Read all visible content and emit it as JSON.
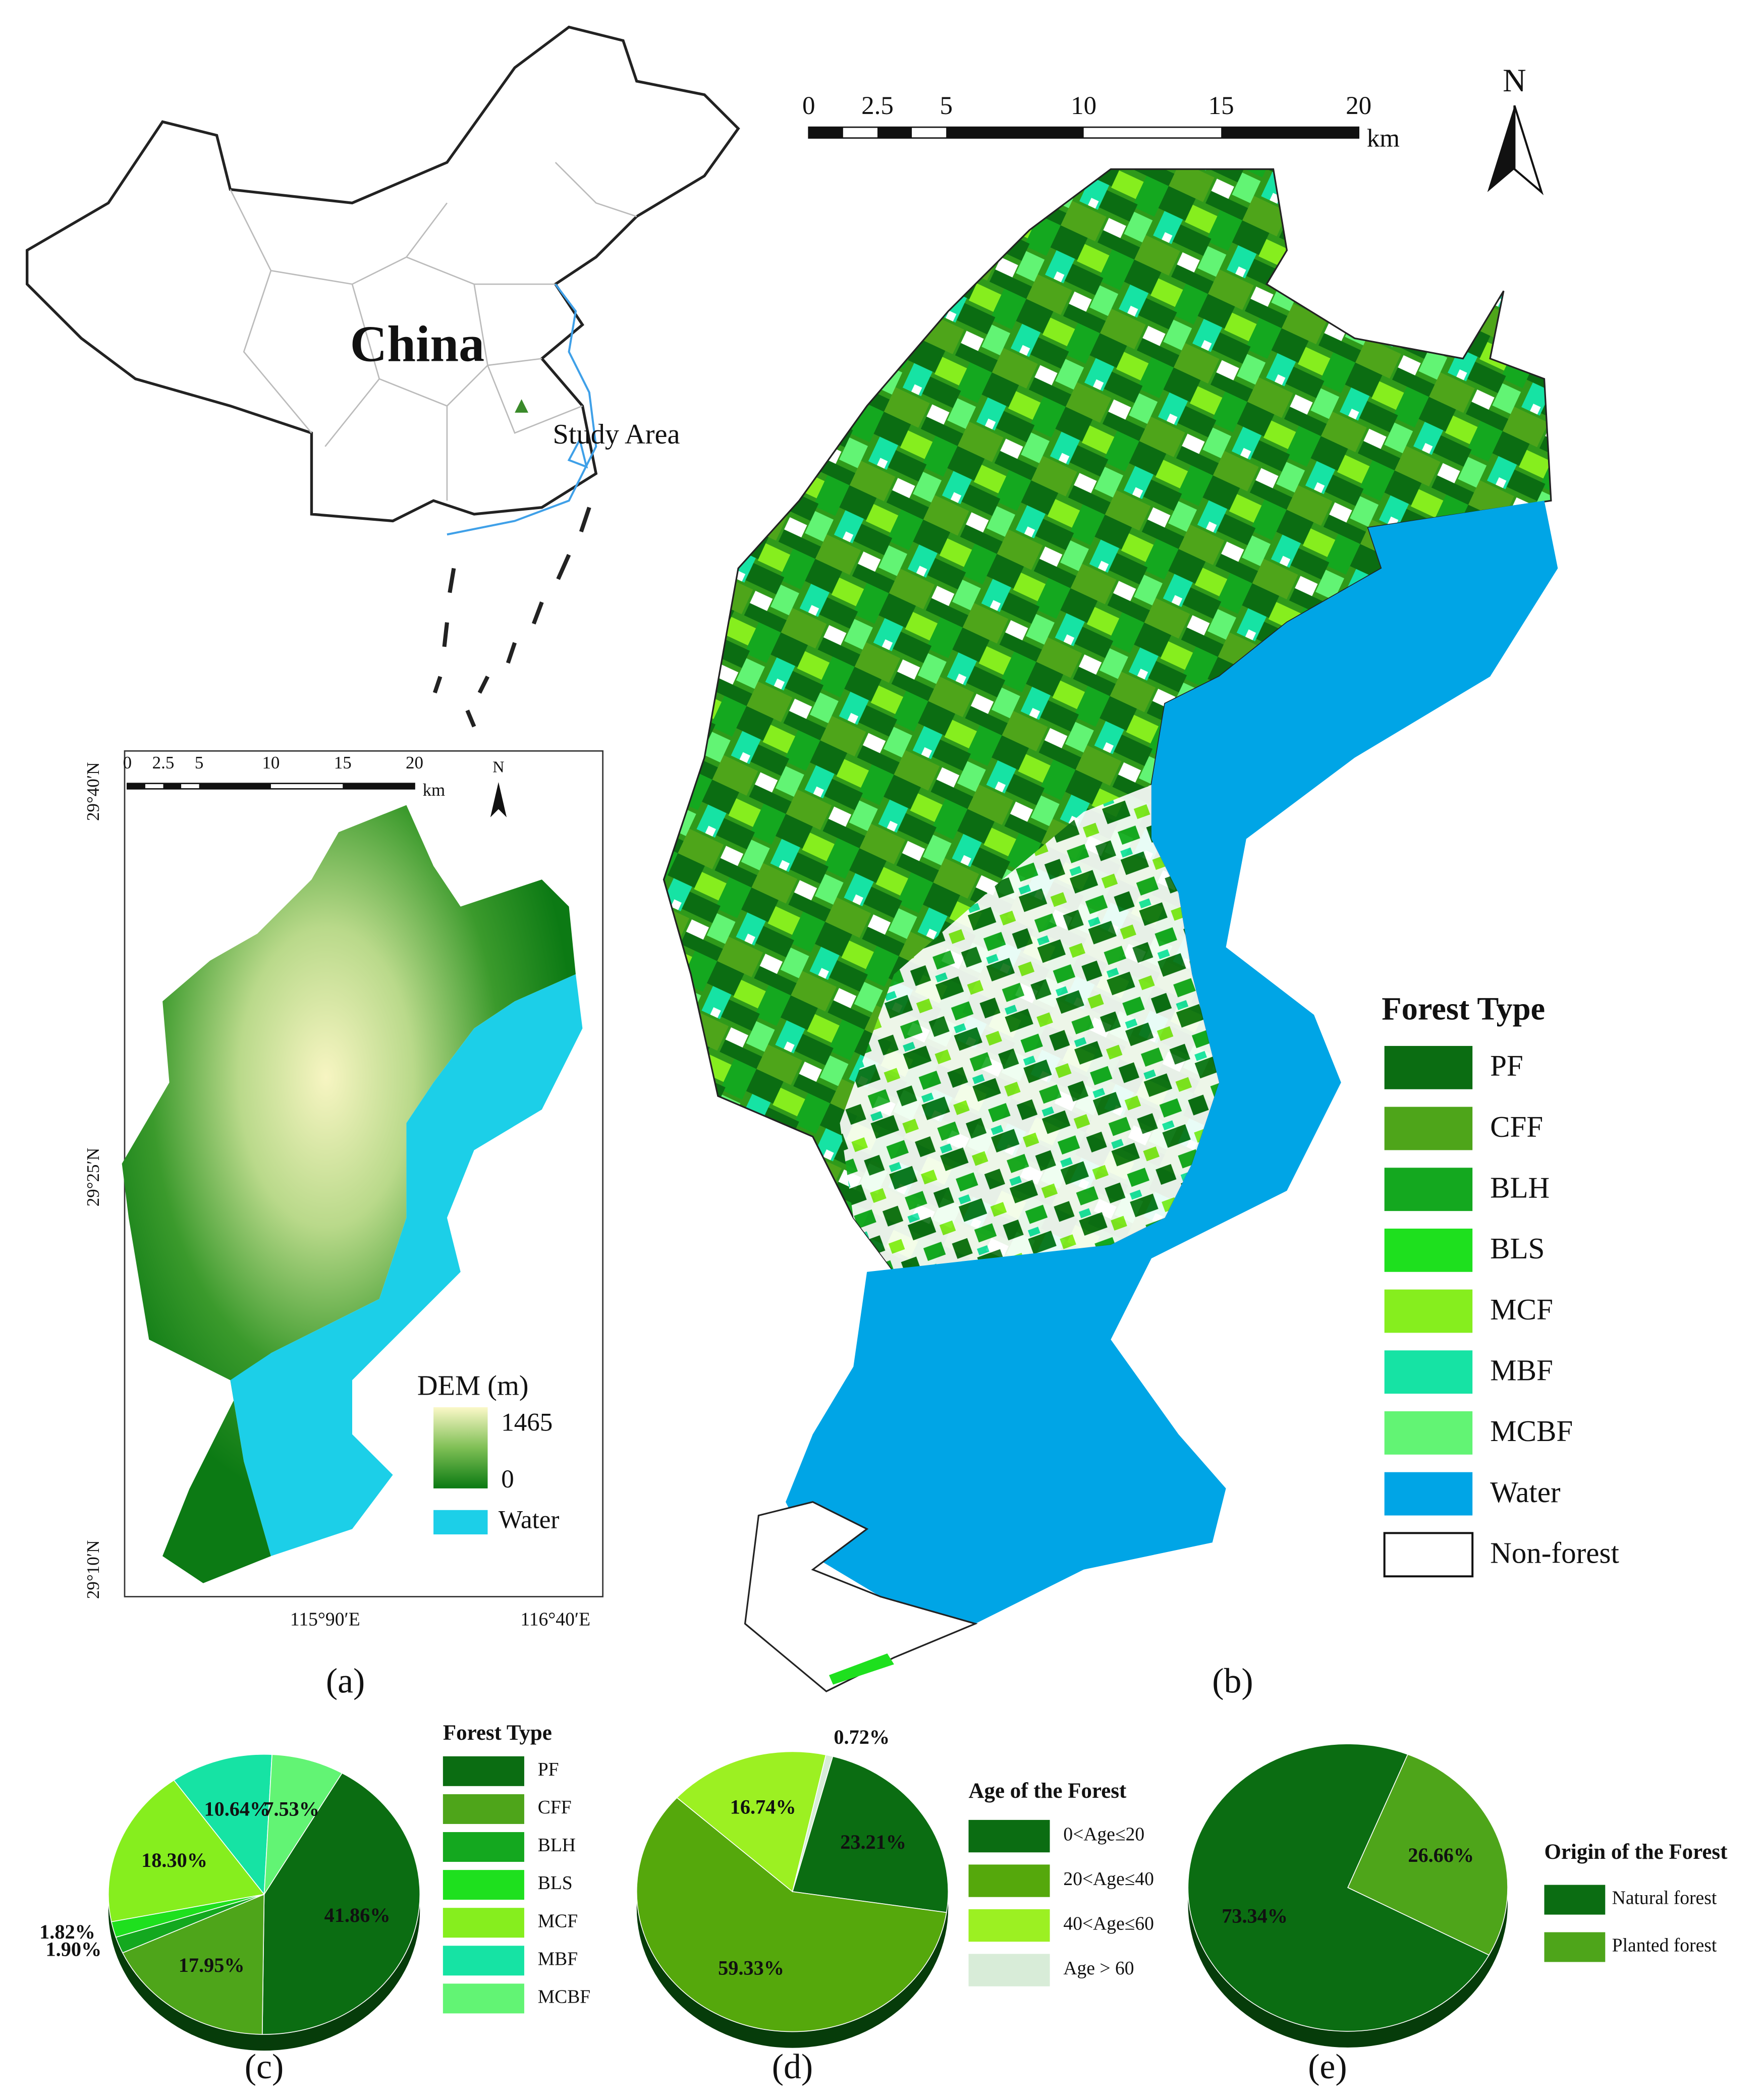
{
  "chart_data": [
    {
      "type": "pie",
      "title": "Forest Type",
      "categories": [
        "PF",
        "CFF",
        "BLH",
        "BLS",
        "MCF",
        "MBF",
        "MCBF"
      ],
      "values": [
        41.86,
        17.95,
        1.9,
        1.82,
        18.3,
        10.64,
        7.53
      ],
      "value_labels": [
        "41.86%",
        "17.95%",
        "1.90%",
        "1.82%",
        "18.30%",
        "10.64%",
        "7.53%"
      ],
      "colors": [
        "#0b6d12",
        "#4ea51a",
        "#14a81f",
        "#1ee01e",
        "#86ee1e",
        "#16e3a4",
        "#62f474"
      ]
    },
    {
      "type": "pie",
      "title": "Age of the Forest",
      "categories": [
        "0<Age≤20",
        "20<Age≤40",
        "40<Age≤60",
        "Age > 60"
      ],
      "values": [
        23.21,
        59.33,
        16.74,
        0.72
      ],
      "value_labels": [
        "23.21%",
        "59.33%",
        "16.74%",
        "0.72%"
      ],
      "colors": [
        "#0b6d12",
        "#55a80c",
        "#9cf022",
        "#d8ecd8"
      ]
    },
    {
      "type": "pie",
      "title": "Origin of the Forest",
      "categories": [
        "Natural forest",
        "Planted forest"
      ],
      "values": [
        73.34,
        26.66
      ],
      "value_labels": [
        "73.34%",
        "26.66%"
      ],
      "colors": [
        "#0b6d12",
        "#4ea51a"
      ]
    }
  ],
  "inset_map": {
    "label": "China",
    "marker": "Study Area"
  },
  "map_a": {
    "scale_labels": [
      "0",
      "2.5",
      "5",
      "10",
      "15",
      "20"
    ],
    "unit": "km",
    "north": "N",
    "lat_labels": [
      "29°40′N",
      "29°25′N",
      "29°10′N"
    ],
    "lon_labels": [
      "115°90′E",
      "116°40′E"
    ],
    "legend_title": "DEM (m)",
    "legend_max": "1465",
    "legend_min": "0",
    "water": "Water",
    "panel": "(a)"
  },
  "map_b": {
    "scale_labels": [
      "0",
      "2.5",
      "5",
      "10",
      "15",
      "20"
    ],
    "unit": "km",
    "north": "N",
    "legend_title": "Forest Type",
    "legend": [
      {
        "label": "PF",
        "color": "#0b6d12"
      },
      {
        "label": "CFF",
        "color": "#4ea51a"
      },
      {
        "label": "BLH",
        "color": "#14a81f"
      },
      {
        "label": "BLS",
        "color": "#1ee01e"
      },
      {
        "label": "MCF",
        "color": "#86ee1e"
      },
      {
        "label": "MBF",
        "color": "#16e3a4"
      },
      {
        "label": "MCBF",
        "color": "#62f474"
      },
      {
        "label": "Water",
        "color": "#00a5e6"
      },
      {
        "label": "Non-forest",
        "color": "#ffffff"
      }
    ],
    "panel": "(b)"
  },
  "panels": {
    "c": "(c)",
    "d": "(d)",
    "e": "(e)"
  }
}
